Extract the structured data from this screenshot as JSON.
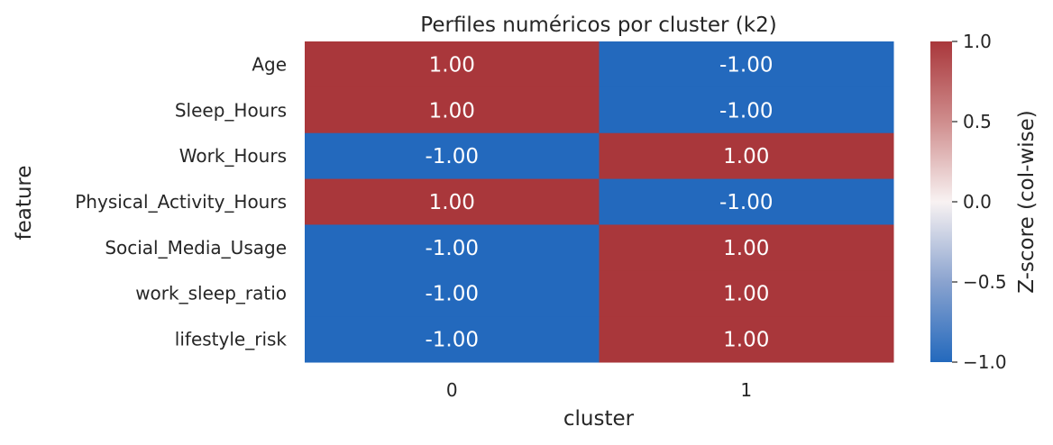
{
  "chart_data": {
    "type": "heatmap",
    "title": "Perfiles numéricos por cluster (k2)",
    "xlabel": "cluster",
    "ylabel": "feature",
    "x_categories": [
      "0",
      "1"
    ],
    "y_categories": [
      "Age",
      "Sleep_Hours",
      "Work_Hours",
      "Physical_Activity_Hours",
      "Social_Media_Usage",
      "work_sleep_ratio",
      "lifestyle_risk"
    ],
    "values": [
      [
        1.0,
        -1.0
      ],
      [
        1.0,
        -1.0
      ],
      [
        -1.0,
        1.0
      ],
      [
        1.0,
        -1.0
      ],
      [
        -1.0,
        1.0
      ],
      [
        -1.0,
        1.0
      ],
      [
        -1.0,
        1.0
      ]
    ],
    "cell_labels": [
      [
        "1.00",
        "-1.00"
      ],
      [
        "1.00",
        "-1.00"
      ],
      [
        "-1.00",
        "1.00"
      ],
      [
        "1.00",
        "-1.00"
      ],
      [
        "-1.00",
        "1.00"
      ],
      [
        "-1.00",
        "1.00"
      ],
      [
        "-1.00",
        "1.00"
      ]
    ],
    "colorbar": {
      "label": "Z-score (col-wise)",
      "range": [
        -1.0,
        1.0
      ],
      "ticks": [
        "1.0",
        "0.5",
        "0.0",
        "−0.5",
        "−1.0"
      ],
      "tick_values": [
        1.0,
        0.5,
        0.0,
        -0.5,
        -1.0
      ],
      "colormap": "vlag"
    },
    "colors": {
      "high": "#a9373b",
      "mid": "#f8f2f2",
      "low": "#2369bd"
    }
  }
}
